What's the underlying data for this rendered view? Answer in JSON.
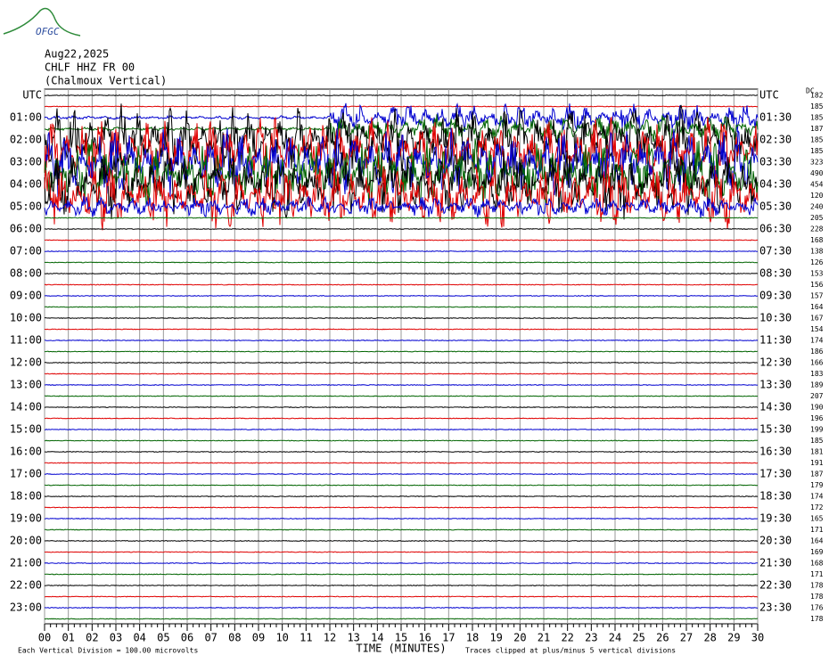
{
  "header": {
    "logo": "OFGC",
    "date": "Aug22,2025",
    "station": "CHLF HHZ FR 00",
    "location": "(Chalmoux Vertical)"
  },
  "left_labels": [
    "UTC",
    "01:00",
    "02:00",
    "03:00",
    "04:00",
    "05:00",
    "06:00",
    "07:00",
    "08:00",
    "09:00",
    "10:00",
    "11:00",
    "12:00",
    "13:00",
    "14:00",
    "15:00",
    "16:00",
    "17:00",
    "18:00",
    "19:00",
    "20:00",
    "21:00",
    "22:00",
    "23:00"
  ],
  "right_labels": [
    "UTC",
    "01:30",
    "02:30",
    "03:30",
    "04:30",
    "05:30",
    "06:30",
    "07:30",
    "08:30",
    "09:30",
    "10:30",
    "11:30",
    "12:30",
    "13:30",
    "14:30",
    "15:30",
    "16:30",
    "17:30",
    "18:30",
    "19:30",
    "20:30",
    "21:30",
    "22:30",
    "23:30"
  ],
  "dc_label": "DC",
  "dc_values": [
    "182",
    "185",
    "185",
    "187",
    "185",
    "185",
    "323",
    "490",
    "454",
    "120",
    "240",
    "205",
    "228",
    "168",
    "138",
    "126",
    "153",
    "156",
    "157",
    "164",
    "167",
    "154",
    "174",
    "186",
    "166",
    "183",
    "189",
    "207",
    "190",
    "196",
    "199",
    "185",
    "181",
    "191",
    "187",
    "179",
    "174",
    "172",
    "165",
    "171",
    "164",
    "169",
    "168",
    "171",
    "178",
    "178",
    "176",
    "178"
  ],
  "x_ticks": [
    "00",
    "01",
    "02",
    "03",
    "04",
    "05",
    "06",
    "07",
    "08",
    "09",
    "10",
    "11",
    "12",
    "13",
    "14",
    "15",
    "16",
    "17",
    "18",
    "19",
    "20",
    "21",
    "22",
    "23",
    "24",
    "25",
    "26",
    "27",
    "28",
    "29",
    "30"
  ],
  "x_axis_title": "TIME (MINUTES)",
  "footer_left": "Each Vertical Division =  100.00 microvolts",
  "footer_right": "Traces clipped at plus/minus 5 vertical divisions"
}
